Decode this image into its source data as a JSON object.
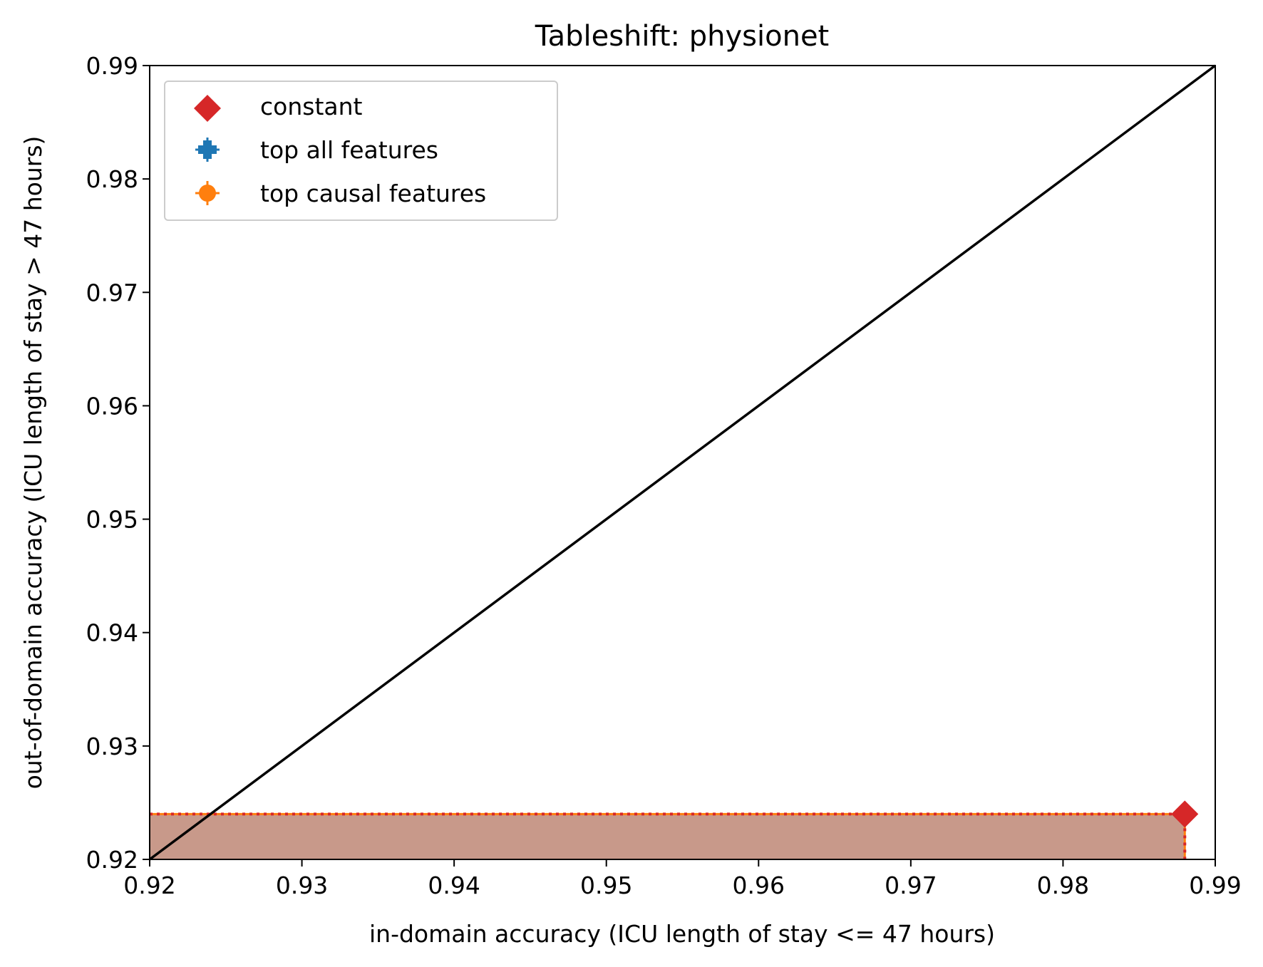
{
  "chart_data": {
    "type": "scatter",
    "title": "Tableshift: physionet",
    "xlabel": "in-domain accuracy (ICU length of stay <= 47 hours)",
    "ylabel": "out-of-domain accuracy (ICU length of stay > 47 hours)",
    "xlim": [
      0.92,
      0.99
    ],
    "ylim": [
      0.92,
      0.99
    ],
    "xticks": [
      "0.92",
      "0.93",
      "0.94",
      "0.95",
      "0.96",
      "0.97",
      "0.98",
      "0.99"
    ],
    "yticks": [
      "0.92",
      "0.93",
      "0.94",
      "0.95",
      "0.96",
      "0.97",
      "0.98",
      "0.99"
    ],
    "grid": false,
    "legend_position": "top-left",
    "diagonal": {
      "x": [
        0.92,
        0.99
      ],
      "y": [
        0.92,
        0.99
      ],
      "color": "#000000"
    },
    "series": [
      {
        "name": "constant",
        "marker": "diamond",
        "color": "#d62728",
        "points": [
          {
            "x": 0.988,
            "y": 0.924
          }
        ]
      },
      {
        "name": "top all features",
        "marker": "plus-filled",
        "color": "#1f77b4",
        "points": [
          {
            "x": 0.988,
            "y": 0.924
          }
        ]
      },
      {
        "name": "top causal features",
        "marker": "circle",
        "color": "#ff7f0e",
        "points": [
          {
            "x": 0.988,
            "y": 0.924
          }
        ]
      }
    ],
    "shaded_region": {
      "x": [
        0.92,
        0.988
      ],
      "y": [
        0.92,
        0.924
      ],
      "color": "#c8998a"
    }
  }
}
